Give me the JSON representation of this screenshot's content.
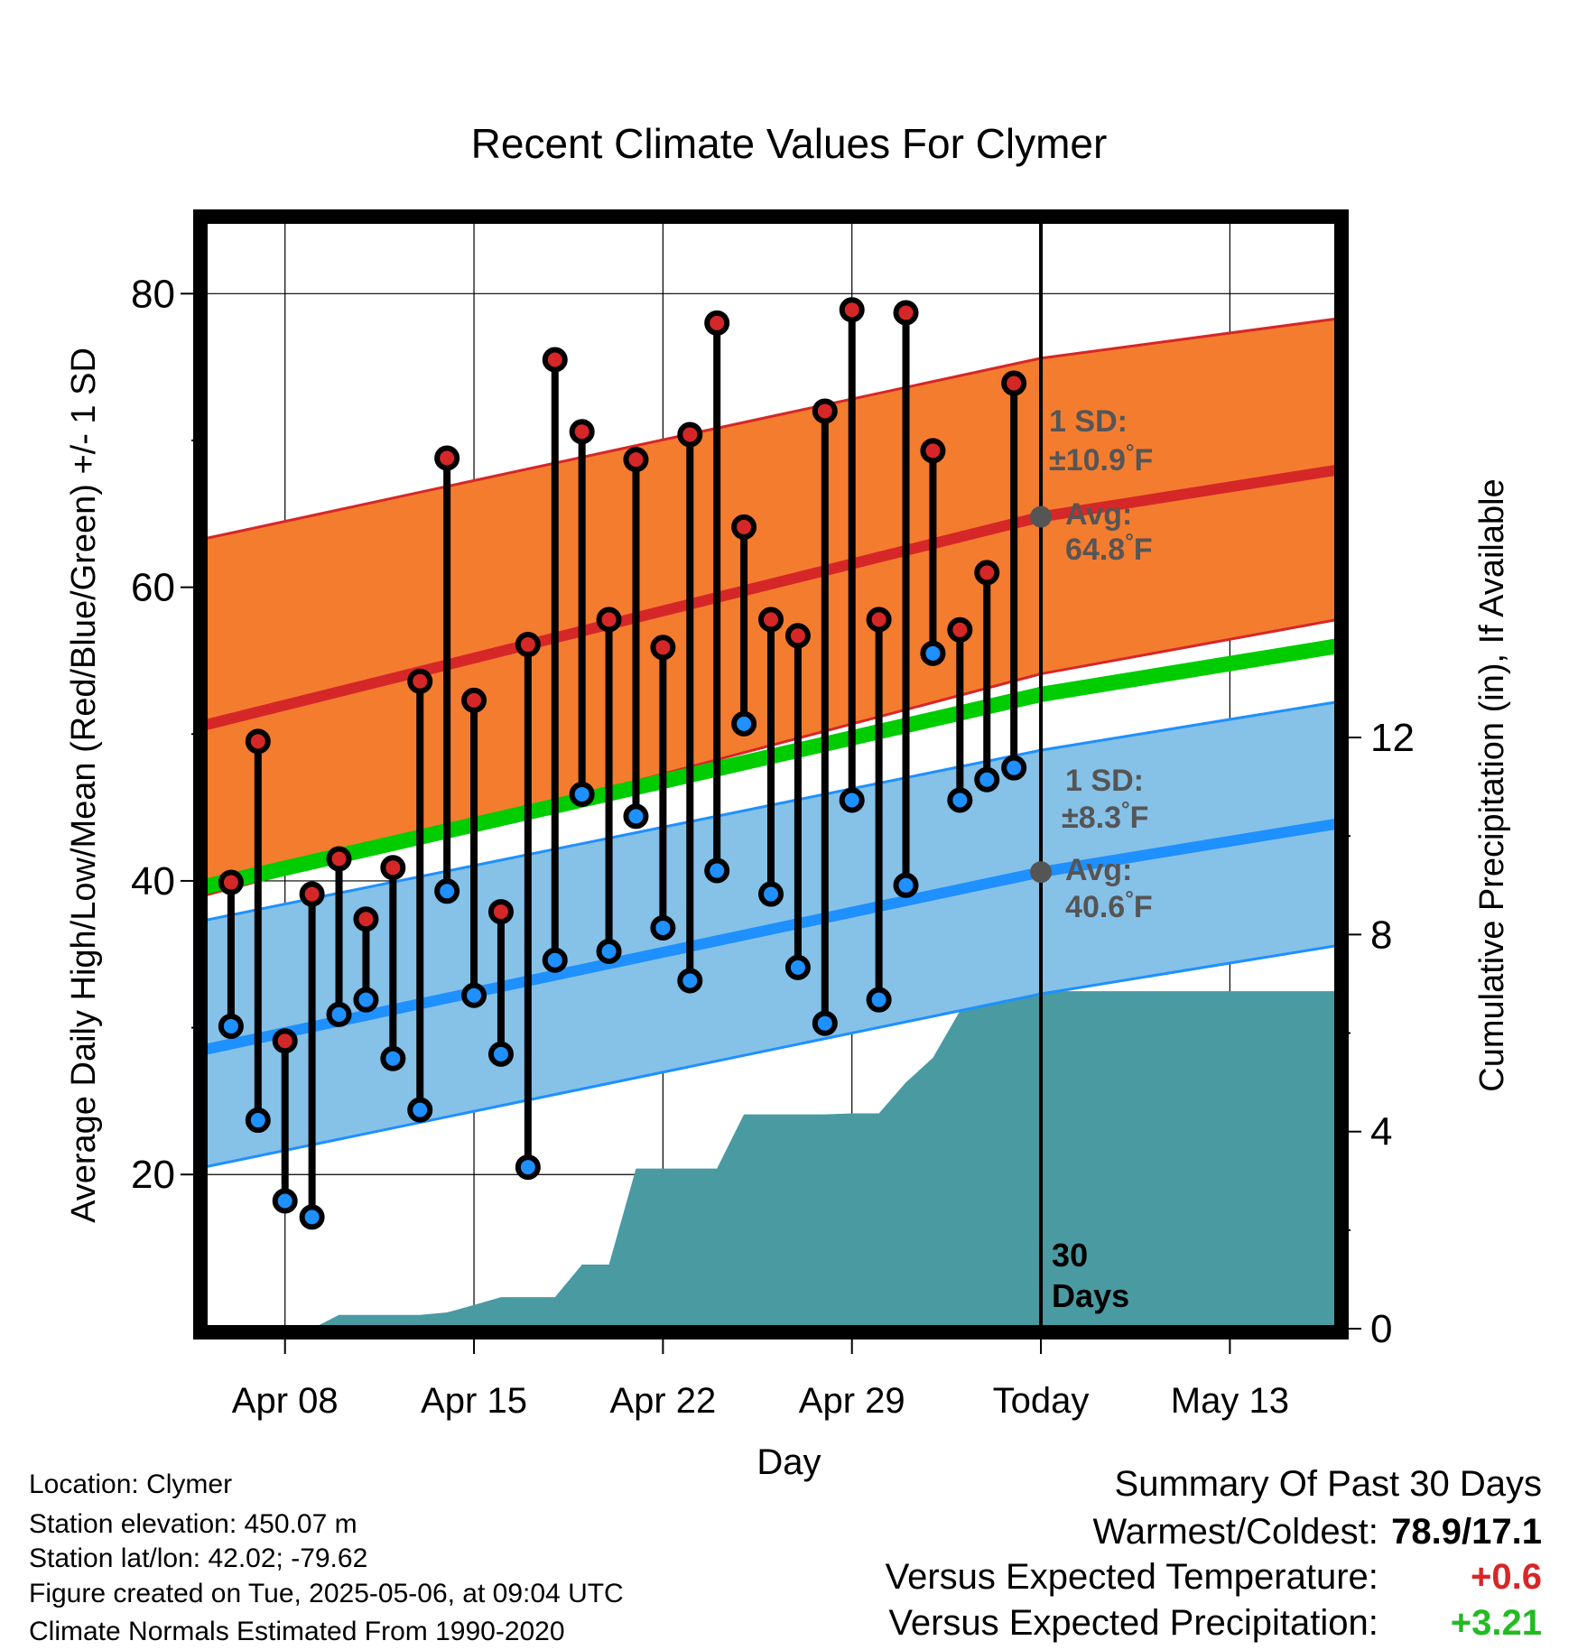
{
  "chart_data": {
    "type": "line",
    "title": "Recent Climate Values For Clymer",
    "xlabel": "Day",
    "ylabel": "Average Daily High/Low/Mean (Red/Blue/Green) +/- 1 SD",
    "y2label": "Cumulative Precipitation (in), If Available",
    "x_tick_labels": [
      "Apr 08",
      "Apr 15",
      "Apr 22",
      "Apr 29",
      "Today",
      "May 13"
    ],
    "y_ticks": [
      20,
      40,
      60,
      80
    ],
    "y2_ticks": [
      0,
      4,
      8,
      12
    ],
    "ylim": [
      9.5,
      85
    ],
    "y2lim": [
      0,
      22.5
    ],
    "xlim": [
      "Apr 05",
      "May 17"
    ],
    "today": "May 06",
    "grid": true,
    "observed": {
      "days": [
        "Apr 06",
        "Apr 07",
        "Apr 08",
        "Apr 09",
        "Apr 10",
        "Apr 11",
        "Apr 12",
        "Apr 13",
        "Apr 14",
        "Apr 15",
        "Apr 16",
        "Apr 17",
        "Apr 18",
        "Apr 19",
        "Apr 20",
        "Apr 21",
        "Apr 22",
        "Apr 23",
        "Apr 24",
        "Apr 25",
        "Apr 26",
        "Apr 27",
        "Apr 28",
        "Apr 29",
        "Apr 30",
        "May 01",
        "May 02",
        "May 03",
        "May 04",
        "May 05"
      ],
      "high": [
        39.9,
        49.5,
        29.1,
        39.1,
        41.5,
        37.4,
        40.9,
        53.6,
        68.8,
        52.3,
        37.9,
        56.1,
        75.5,
        70.6,
        57.8,
        68.7,
        55.9,
        70.4,
        78.0,
        64.1,
        57.8,
        56.7,
        72.0,
        78.9,
        57.8,
        78.7,
        69.3,
        57.1,
        61.0,
        73.9
      ],
      "low": [
        30.1,
        23.7,
        18.2,
        17.1,
        30.9,
        31.9,
        27.9,
        24.4,
        39.3,
        32.2,
        28.2,
        20.5,
        34.6,
        45.9,
        35.2,
        44.4,
        36.8,
        33.2,
        40.7,
        50.7,
        39.1,
        34.1,
        30.3,
        45.5,
        31.9,
        39.7,
        55.5,
        45.5,
        46.9,
        47.7
      ]
    },
    "normals": {
      "days": [
        "Apr 05",
        "May 06",
        "May 17"
      ],
      "mean_high": [
        50.6,
        64.8,
        68.0
      ],
      "high_sd_upper": [
        63.3,
        75.6,
        78.3
      ],
      "high_sd_lower": [
        39.0,
        54.1,
        57.8
      ],
      "mean_low": [
        28.5,
        40.6,
        43.9
      ],
      "low_sd_upper": [
        37.3,
        48.9,
        52.2
      ],
      "low_sd_lower": [
        20.5,
        32.3,
        35.6
      ],
      "mean_avg": [
        39.6,
        52.7,
        56.0
      ]
    },
    "precip_cumulative": {
      "days": [
        "Apr 08",
        "Apr 09",
        "Apr 10",
        "Apr 11",
        "Apr 12",
        "Apr 13",
        "Apr 14",
        "Apr 15",
        "Apr 16",
        "Apr 17",
        "Apr 18",
        "Apr 19",
        "Apr 20",
        "Apr 21",
        "Apr 22",
        "Apr 23",
        "Apr 24",
        "Apr 25",
        "Apr 26",
        "Apr 27",
        "Apr 28",
        "Apr 29",
        "Apr 30",
        "May 01",
        "May 02",
        "May 03",
        "May 04",
        "May 05",
        "May 06"
      ],
      "values": [
        0.0,
        0.0,
        0.28,
        0.28,
        0.28,
        0.28,
        0.33,
        0.48,
        0.64,
        0.64,
        0.64,
        1.3,
        1.3,
        3.25,
        3.25,
        3.25,
        3.25,
        4.35,
        4.35,
        4.35,
        4.35,
        4.37,
        4.37,
        5.0,
        5.5,
        6.45,
        6.55,
        6.85,
        6.85
      ]
    },
    "annotations": {
      "high_sd_label": [
        "1 SD:",
        "±10.9",
        "°F"
      ],
      "high_avg_label": [
        "Avg:",
        "64.8",
        "°F"
      ],
      "low_sd_label": [
        "1 SD:",
        "±8.3",
        "°F"
      ],
      "low_avg_label": [
        "Avg:",
        "40.6",
        "°F"
      ],
      "days_label": [
        "30",
        "Days"
      ]
    },
    "colors": {
      "high_band": "#f47c2f",
      "high_line": "#d62728",
      "low_band": "#86c1e8",
      "low_line": "#1e90ff",
      "mean_line": "#00cc00",
      "precip": "#4a9aa2",
      "high_marker": "#d62728",
      "low_marker": "#1e90ff",
      "annotation": "#555555"
    }
  },
  "footer": {
    "location": "Location: Clymer",
    "elevation": "Station elevation: 450.07 m",
    "latlon": "Station lat/lon: 42.02; -79.62",
    "created": "Figure created on Tue, 2025-05-06, at 09:04 UTC",
    "normals": "Climate Normals Estimated From 1990-2020"
  },
  "summary": {
    "title": "Summary Of Past 30 Days",
    "warmest_label": "Warmest/Coldest:",
    "warmest_value": "78.9/17.1",
    "temp_label": "Versus Expected Temperature:",
    "temp_value": "+0.6",
    "temp_color": "#d62728",
    "precip_label": "Versus Expected Precipitation:",
    "precip_value": "+3.21",
    "precip_color": "#22bb22"
  }
}
